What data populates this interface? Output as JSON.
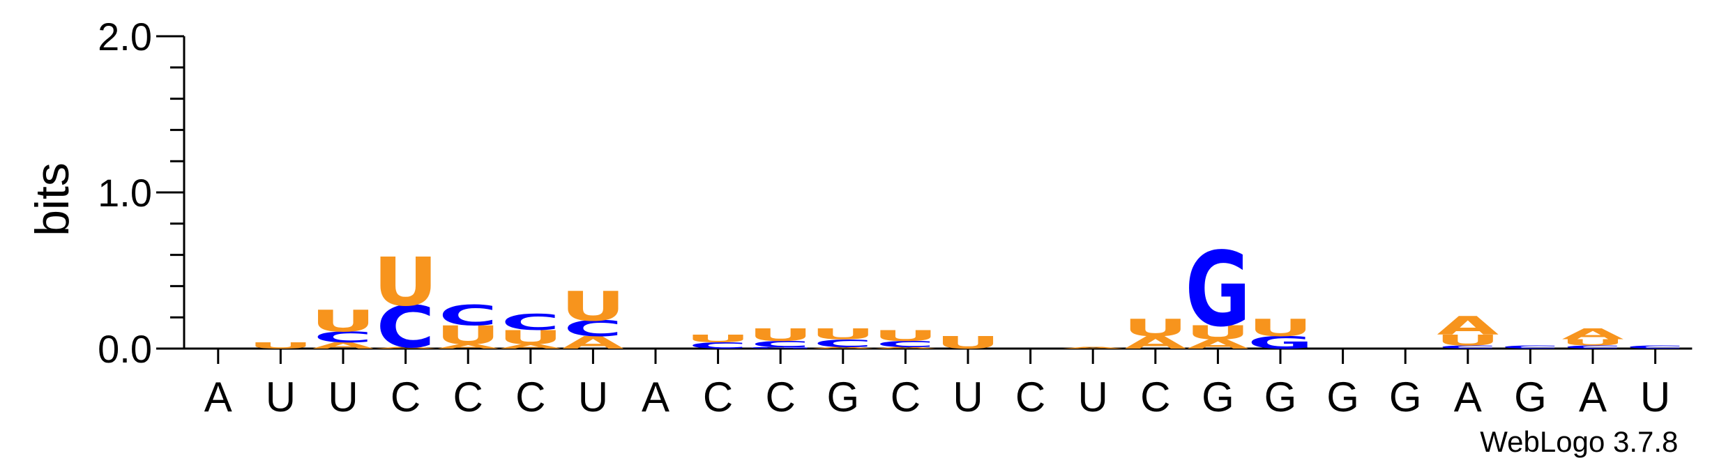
{
  "chart_data": {
    "type": "sequence-logo",
    "ylabel": "bits",
    "ylim": [
      0,
      2
    ],
    "yticks": [
      {
        "value": 0,
        "label": "0.0"
      },
      {
        "value": 1,
        "label": "1.0"
      },
      {
        "value": 2,
        "label": "2.0"
      }
    ],
    "colors": {
      "A": "#f7941d",
      "C": "#0000ff",
      "G": "#0000ff",
      "U": "#f7941d"
    },
    "sequence": [
      "A",
      "U",
      "U",
      "C",
      "C",
      "C",
      "U",
      "A",
      "C",
      "C",
      "G",
      "C",
      "U",
      "C",
      "U",
      "C",
      "G",
      "G",
      "G",
      "G",
      "A",
      "G",
      "A",
      "U"
    ],
    "stacks": [
      [],
      [
        {
          "letter": "U",
          "bits": 0.04
        }
      ],
      [
        {
          "letter": "A",
          "bits": 0.04
        },
        {
          "letter": "C",
          "bits": 0.07
        },
        {
          "letter": "U",
          "bits": 0.14
        }
      ],
      [
        {
          "letter": "A",
          "bits": 0.01
        },
        {
          "letter": "C",
          "bits": 0.27
        },
        {
          "letter": "U",
          "bits": 0.31
        }
      ],
      [
        {
          "letter": "A",
          "bits": 0.03
        },
        {
          "letter": "U",
          "bits": 0.12
        },
        {
          "letter": "C",
          "bits": 0.13
        }
      ],
      [
        {
          "letter": "A",
          "bits": 0.03
        },
        {
          "letter": "U",
          "bits": 0.09
        },
        {
          "letter": "C",
          "bits": 0.1
        }
      ],
      [
        {
          "letter": "A",
          "bits": 0.08
        },
        {
          "letter": "C",
          "bits": 0.1
        },
        {
          "letter": "U",
          "bits": 0.19
        }
      ],
      [],
      [
        {
          "letter": "C",
          "bits": 0.04
        },
        {
          "letter": "U",
          "bits": 0.05
        }
      ],
      [
        {
          "letter": "G",
          "bits": 0.01
        },
        {
          "letter": "C",
          "bits": 0.04
        },
        {
          "letter": "U",
          "bits": 0.08
        }
      ],
      [
        {
          "letter": "A",
          "bits": 0.01
        },
        {
          "letter": "C",
          "bits": 0.05
        },
        {
          "letter": "U",
          "bits": 0.07
        }
      ],
      [
        {
          "letter": "A",
          "bits": 0.01
        },
        {
          "letter": "C",
          "bits": 0.04
        },
        {
          "letter": "U",
          "bits": 0.07
        }
      ],
      [
        {
          "letter": "U",
          "bits": 0.08
        }
      ],
      [],
      [
        {
          "letter": "A",
          "bits": 0.01
        }
      ],
      [
        {
          "letter": "A",
          "bits": 0.08
        },
        {
          "letter": "U",
          "bits": 0.11
        }
      ],
      [
        {
          "letter": "A",
          "bits": 0.06
        },
        {
          "letter": "U",
          "bits": 0.09
        },
        {
          "letter": "G",
          "bits": 0.48
        }
      ],
      [
        {
          "letter": "G",
          "bits": 0.08
        },
        {
          "letter": "U",
          "bits": 0.11
        }
      ],
      [],
      [],
      [
        {
          "letter": "C",
          "bits": 0.02
        },
        {
          "letter": "U",
          "bits": 0.07
        },
        {
          "letter": "A",
          "bits": 0.12
        }
      ],
      [
        {
          "letter": "C",
          "bits": 0.02
        }
      ],
      [
        {
          "letter": "C",
          "bits": 0.02
        },
        {
          "letter": "U",
          "bits": 0.04
        },
        {
          "letter": "A",
          "bits": 0.07
        }
      ],
      [
        {
          "letter": "C",
          "bits": 0.02
        }
      ]
    ],
    "credit": "WebLogo 3.7.8"
  }
}
